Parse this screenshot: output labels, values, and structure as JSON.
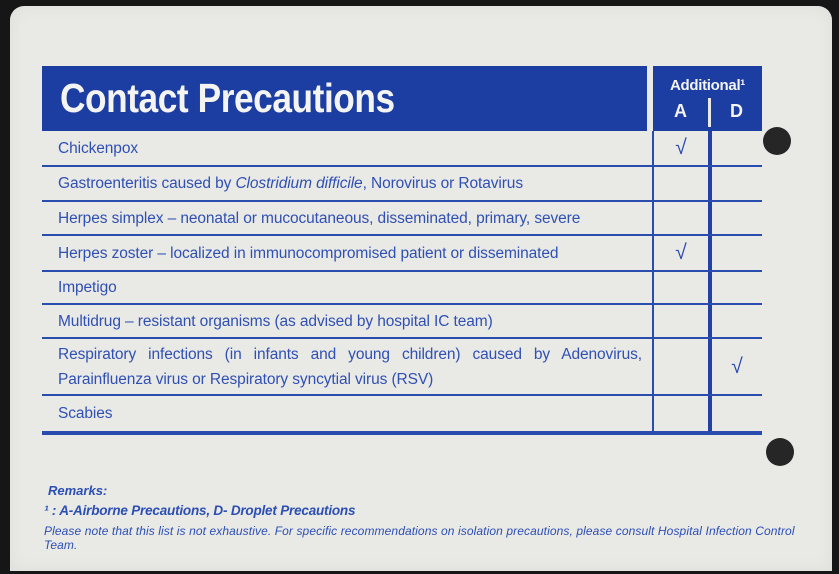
{
  "card": {
    "title": "Contact Precautions",
    "additional_header": "Additional¹",
    "col_a_label": "A",
    "col_d_label": "D"
  },
  "table": {
    "rows": [
      {
        "segments": [
          {
            "text": "Chickenpox"
          }
        ],
        "a": "√",
        "d": ""
      },
      {
        "segments": [
          {
            "text": "Gastroenteritis caused by "
          },
          {
            "text": "Clostridium difficile",
            "italic": true
          },
          {
            "text": ", Norovirus or Rotavirus"
          }
        ],
        "a": "",
        "d": ""
      },
      {
        "segments": [
          {
            "text": "Herpes simplex – neonatal or mucocutaneous, disseminated, primary, severe"
          }
        ],
        "a": "",
        "d": ""
      },
      {
        "segments": [
          {
            "text": "Herpes zoster – localized in immunocompromised patient or disseminated"
          }
        ],
        "a": "√",
        "d": ""
      },
      {
        "segments": [
          {
            "text": "Impetigo"
          }
        ],
        "a": "",
        "d": ""
      },
      {
        "segments": [
          {
            "text": "Multidrug – resistant organisms (as advised by hospital IC team)"
          }
        ],
        "a": "",
        "d": ""
      },
      {
        "segments": [
          {
            "text": "Respiratory infections (in infants and young children) caused by Adenovirus, Parainfluenza virus or Respiratory syncytial virus (RSV)"
          }
        ],
        "a": "",
        "d": "√"
      },
      {
        "segments": [
          {
            "text": "Scabies"
          }
        ],
        "a": "",
        "d": ""
      }
    ]
  },
  "footer": {
    "remarks_label": "Remarks:",
    "footnote": "¹ : A-Airborne Precautions, D- Droplet Precautions",
    "disclaimer": "Please note that this list is not exhaustive. For specific recommendations on isolation precautions, please consult Hospital Infection Control Team."
  },
  "colors": {
    "header_blue": "#1c3da1",
    "line_blue": "#2a4cae",
    "text_blue": "#3050b2",
    "card_background": "#e9e9e6",
    "scan_edge_black": "#161616"
  }
}
